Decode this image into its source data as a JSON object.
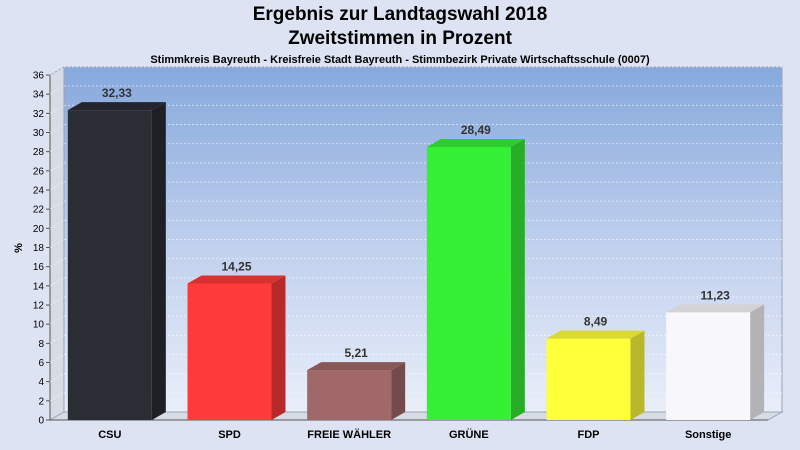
{
  "header": {
    "title": "Ergebnis zur Landtagswahl 2018",
    "subtitle": "Zweitstimmen in Prozent",
    "caption": "Stimmkreis Bayreuth - Kreisfreie Stadt Bayreuth - Stimmbezirk Private Wirtschaftsschule (0007)"
  },
  "chart_data": {
    "type": "bar",
    "title": "Ergebnis zur Landtagswahl 2018",
    "subtitle": "Zweitstimmen in Prozent",
    "ylabel": "%",
    "xlabel": "",
    "ylim": [
      0,
      36
    ],
    "ytick_step": 2,
    "grid": true,
    "legend": "none",
    "categories": [
      "CSU",
      "SPD",
      "FREIE WÄHLER",
      "GRÜNE",
      "FDP",
      "Sonstige"
    ],
    "values": [
      32.33,
      14.25,
      5.21,
      28.49,
      8.49,
      11.23
    ],
    "value_labels": [
      "32,33",
      "14,25",
      "5,21",
      "28,49",
      "8,49",
      "11,23"
    ],
    "colors": [
      "#2b2d35",
      "#ff3a3a",
      "#a06868",
      "#36f036",
      "#ffff3a",
      "#f8f8fc"
    ]
  }
}
